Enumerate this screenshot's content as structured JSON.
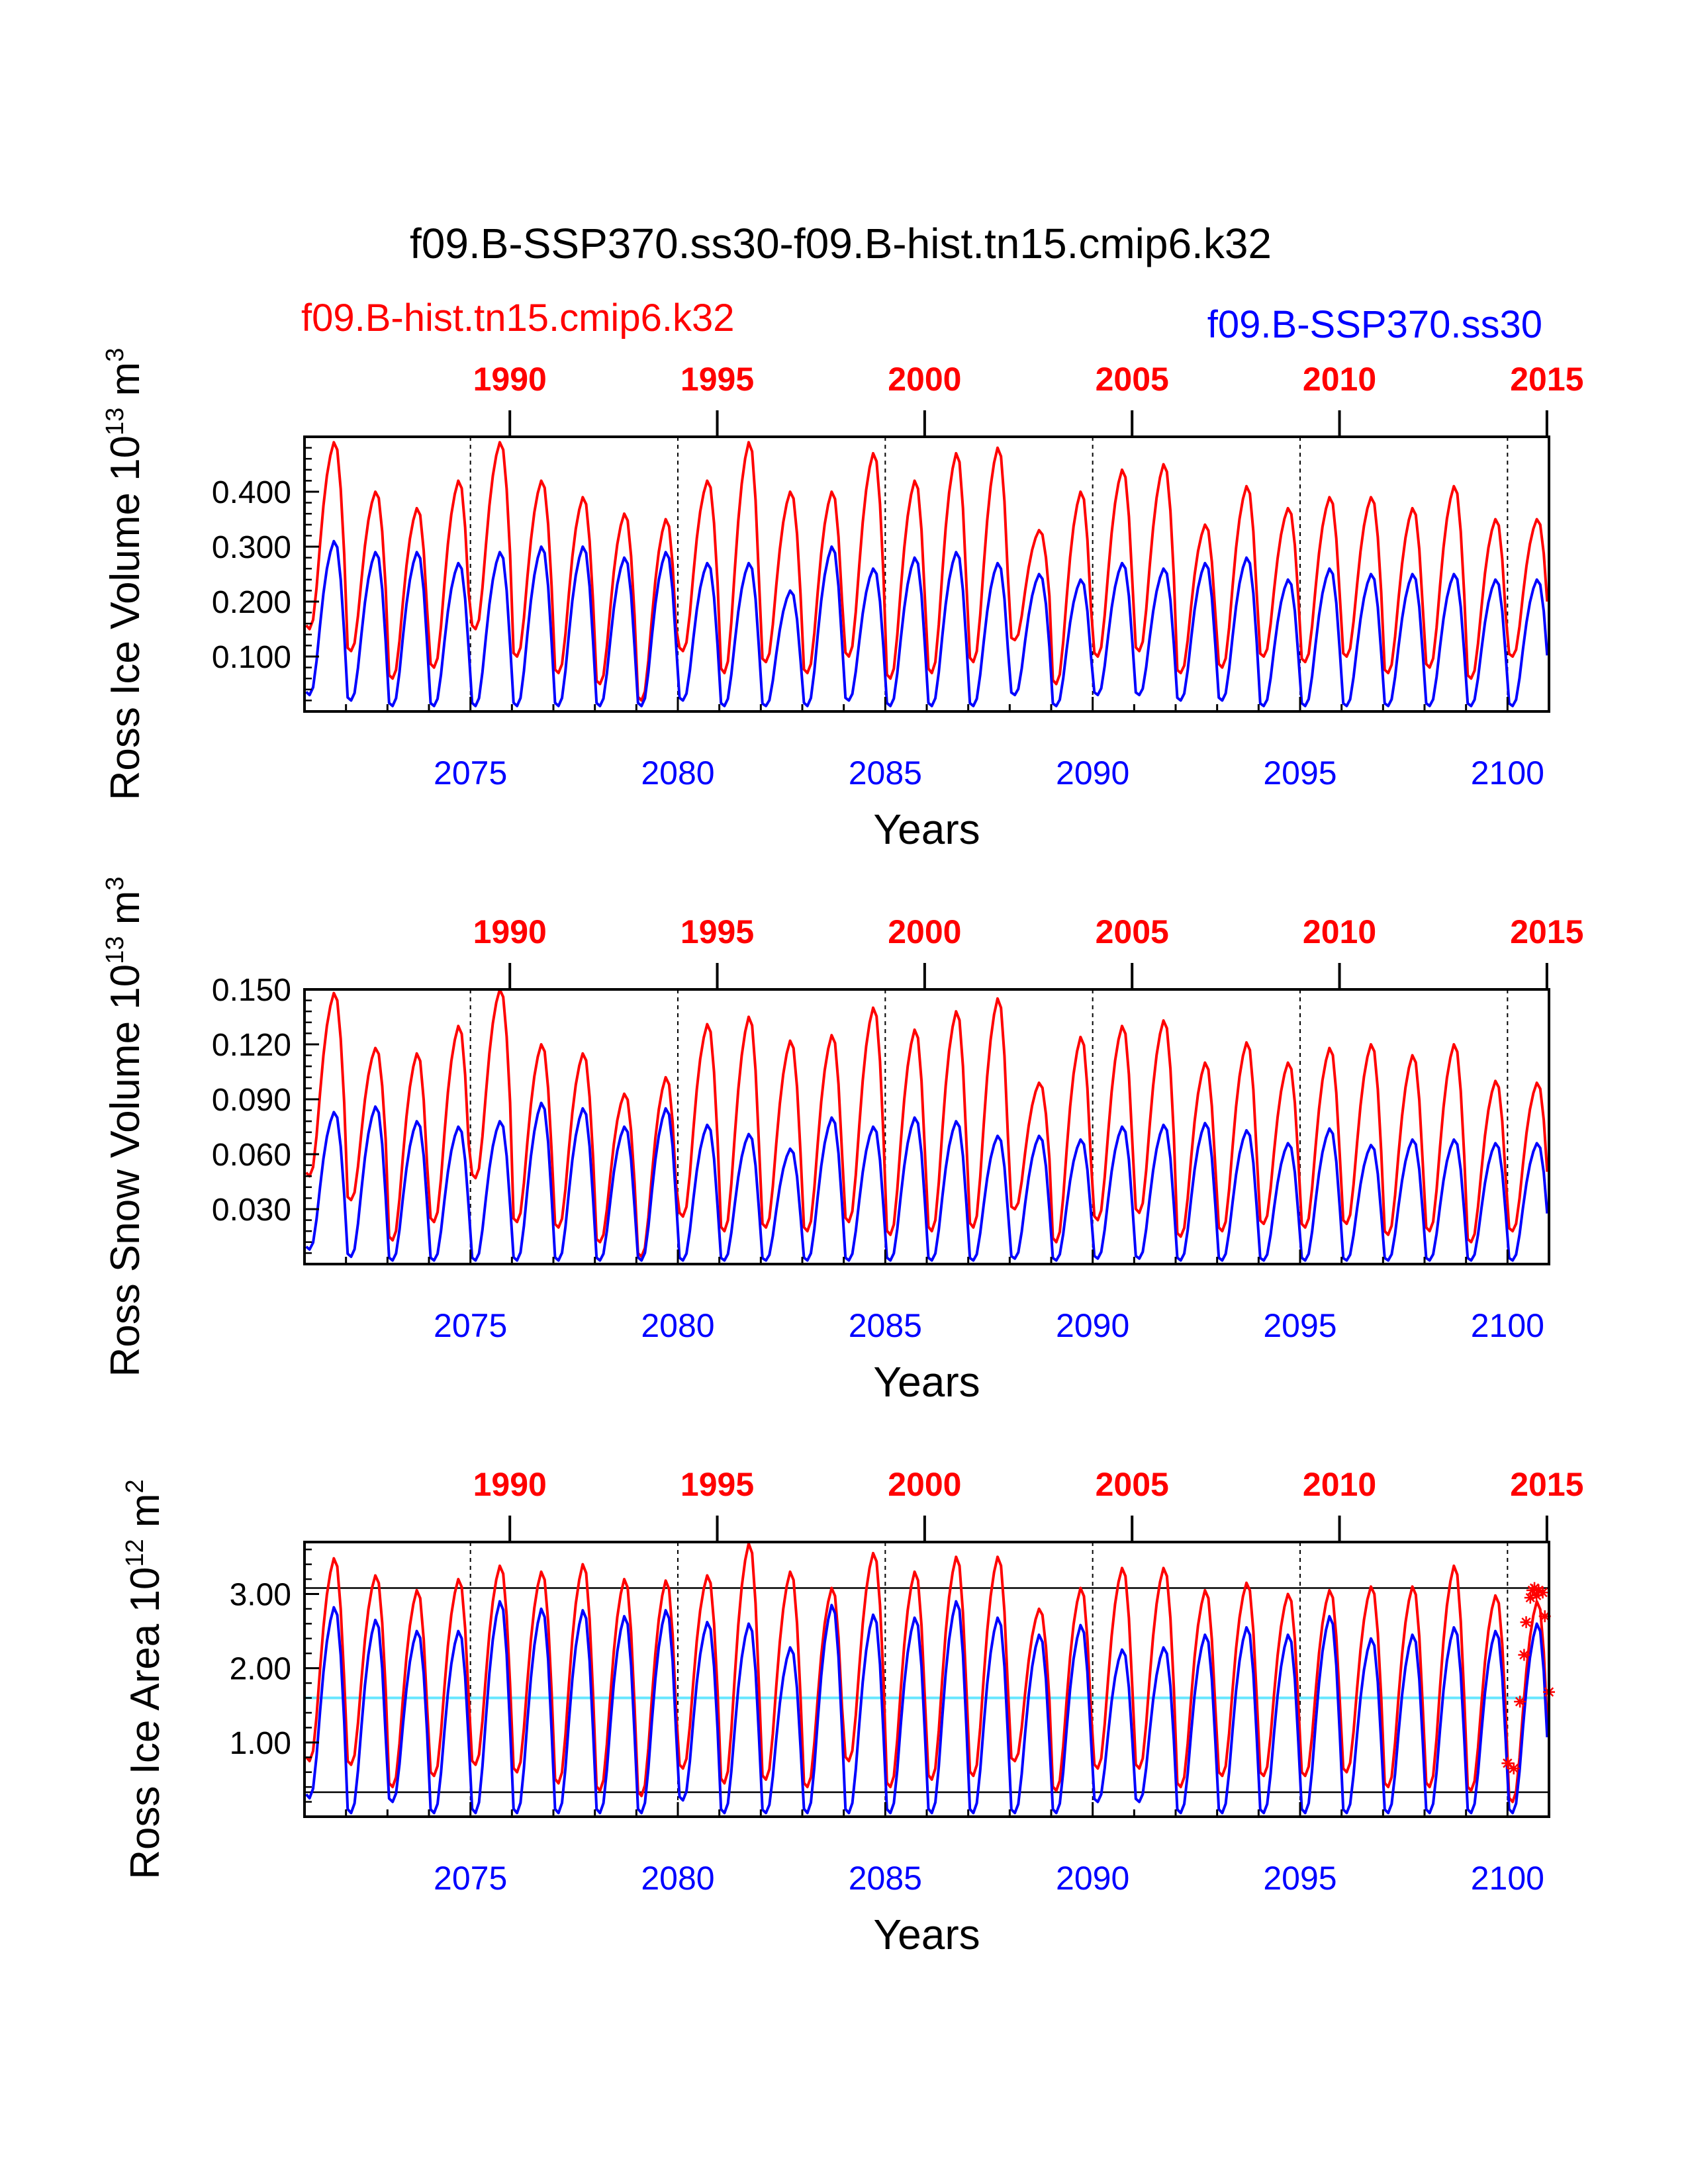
{
  "title": "f09.B-SSP370.ss30-f09.B-hist.tn15.cmip6.k32",
  "legend": {
    "left": "f09.B-hist.tn15.cmip6.k32",
    "right": "f09.B-SSP370.ss30"
  },
  "colors": {
    "red": "#ff0000",
    "blue": "#0000ff",
    "cyan": "#66e6ff",
    "black": "#000000"
  },
  "chart_data": [
    {
      "type": "line",
      "ylabel": "Ross Ice Volume 10^13 m^3",
      "xlabel": "Years",
      "xlim": [
        2071,
        2101
      ],
      "ylim": [
        0.0,
        0.5
      ],
      "yticks": [
        "0.100",
        "0.200",
        "0.300",
        "0.400"
      ],
      "bottom_axis_ticks": [
        "2075",
        "2080",
        "2085",
        "2090",
        "2095",
        "2100"
      ],
      "top_axis_ticks": [
        "1990",
        "1995",
        "2000",
        "2005",
        "2010",
        "2015"
      ],
      "series": [
        {
          "name": "f09.B-hist.tn15.cmip6.k32",
          "color": "red",
          "x_start": 2071.04,
          "annual_max": [
            0.49,
            0.4,
            0.37,
            0.42,
            0.49,
            0.42,
            0.39,
            0.36,
            0.35,
            0.42,
            0.49,
            0.4,
            0.4,
            0.47,
            0.42,
            0.47,
            0.48,
            0.33,
            0.4,
            0.44,
            0.45,
            0.34,
            0.41,
            0.37,
            0.39,
            0.39,
            0.37,
            0.41,
            0.35,
            0.35
          ],
          "annual_min": [
            0.15,
            0.11,
            0.06,
            0.08,
            0.15,
            0.1,
            0.07,
            0.05,
            0.02,
            0.11,
            0.07,
            0.09,
            0.07,
            0.1,
            0.06,
            0.07,
            0.09,
            0.13,
            0.05,
            0.1,
            0.11,
            0.07,
            0.08,
            0.1,
            0.09,
            0.1,
            0.07,
            0.08,
            0.06,
            0.1
          ]
        },
        {
          "name": "f09.B-SSP370.ss30",
          "color": "blue",
          "x_start": 2071.04,
          "annual_max": [
            0.31,
            0.29,
            0.29,
            0.27,
            0.29,
            0.3,
            0.3,
            0.28,
            0.29,
            0.27,
            0.27,
            0.22,
            0.3,
            0.26,
            0.28,
            0.29,
            0.27,
            0.25,
            0.24,
            0.27,
            0.26,
            0.27,
            0.28,
            0.24,
            0.26,
            0.25,
            0.25,
            0.25,
            0.24,
            0.24
          ],
          "annual_min": [
            0.03,
            0.02,
            0.01,
            0.01,
            0.01,
            0.01,
            0.01,
            0.01,
            0.01,
            0.02,
            0.01,
            0.01,
            0.01,
            0.02,
            0.01,
            0.01,
            0.01,
            0.03,
            0.01,
            0.03,
            0.03,
            0.02,
            0.02,
            0.01,
            0.01,
            0.01,
            0.01,
            0.01,
            0.01,
            0.01
          ]
        }
      ]
    },
    {
      "type": "line",
      "ylabel": "Ross Snow Volume 10^13 m^3",
      "xlabel": "Years",
      "xlim": [
        2071,
        2101
      ],
      "ylim": [
        0.0,
        0.15
      ],
      "yticks": [
        "0.030",
        "0.060",
        "0.090",
        "0.120",
        "0.150"
      ],
      "bottom_axis_ticks": [
        "2075",
        "2080",
        "2085",
        "2090",
        "2095",
        "2100"
      ],
      "top_axis_ticks": [
        "1990",
        "1995",
        "2000",
        "2005",
        "2010",
        "2015"
      ],
      "series": [
        {
          "name": "f09.B-hist.tn15.cmip6.k32",
          "color": "red",
          "x_start": 2071.04,
          "annual_max": [
            0.148,
            0.118,
            0.115,
            0.13,
            0.15,
            0.12,
            0.115,
            0.093,
            0.102,
            0.131,
            0.135,
            0.122,
            0.125,
            0.14,
            0.128,
            0.138,
            0.145,
            0.099,
            0.124,
            0.13,
            0.133,
            0.11,
            0.121,
            0.11,
            0.118,
            0.12,
            0.114,
            0.12,
            0.1,
            0.099
          ],
          "annual_min": [
            0.048,
            0.035,
            0.013,
            0.023,
            0.047,
            0.023,
            0.02,
            0.012,
            0.004,
            0.026,
            0.018,
            0.02,
            0.018,
            0.023,
            0.016,
            0.018,
            0.02,
            0.03,
            0.012,
            0.024,
            0.028,
            0.015,
            0.018,
            0.022,
            0.02,
            0.022,
            0.016,
            0.018,
            0.012,
            0.018
          ]
        },
        {
          "name": "f09.B-SSP370.ss30",
          "color": "blue",
          "x_start": 2071.04,
          "annual_max": [
            0.083,
            0.086,
            0.078,
            0.075,
            0.078,
            0.088,
            0.085,
            0.075,
            0.085,
            0.076,
            0.071,
            0.063,
            0.08,
            0.075,
            0.08,
            0.078,
            0.07,
            0.07,
            0.068,
            0.075,
            0.076,
            0.077,
            0.073,
            0.066,
            0.074,
            0.065,
            0.068,
            0.068,
            0.066,
            0.066
          ],
          "annual_min": [
            0.008,
            0.004,
            0.002,
            0.002,
            0.002,
            0.002,
            0.002,
            0.002,
            0.002,
            0.002,
            0.002,
            0.002,
            0.002,
            0.002,
            0.002,
            0.002,
            0.002,
            0.003,
            0.002,
            0.003,
            0.003,
            0.002,
            0.002,
            0.002,
            0.002,
            0.002,
            0.002,
            0.002,
            0.002,
            0.002
          ]
        }
      ]
    },
    {
      "type": "line",
      "ylabel": "Ross Ice Area 10^12 m^2",
      "xlabel": "Years",
      "xlim": [
        2071,
        2101
      ],
      "ylim": [
        0.0,
        3.7
      ],
      "yticks": [
        "1.00",
        "2.00",
        "3.00"
      ],
      "bottom_axis_ticks": [
        "2075",
        "2080",
        "2085",
        "2090",
        "2095",
        "2100"
      ],
      "top_axis_ticks": [
        "1990",
        "1995",
        "2000",
        "2005",
        "2010",
        "2015"
      ],
      "reference_lines": [
        {
          "y": 3.08,
          "color": "black"
        },
        {
          "y": 1.6,
          "color": "cyan"
        },
        {
          "y": 0.33,
          "color": "black"
        }
      ],
      "series": [
        {
          "name": "f09.B-hist.tn15.cmip6.k32",
          "color": "red",
          "x_start": 2071.04,
          "annual_max": [
            3.48,
            3.25,
            3.05,
            3.2,
            3.38,
            3.3,
            3.4,
            3.2,
            3.18,
            3.25,
            3.68,
            3.3,
            3.08,
            3.55,
            3.3,
            3.5,
            3.5,
            2.8,
            3.08,
            3.35,
            3.35,
            3.05,
            3.15,
            3.0,
            3.05,
            3.1,
            3.1,
            3.38,
            2.98,
            2.9
          ],
          "annual_min": [
            0.75,
            0.7,
            0.4,
            0.55,
            0.7,
            0.6,
            0.45,
            0.35,
            0.28,
            0.65,
            0.45,
            0.5,
            0.4,
            0.75,
            0.4,
            0.5,
            0.55,
            0.75,
            0.35,
            0.65,
            0.65,
            0.4,
            0.55,
            0.55,
            0.55,
            0.6,
            0.4,
            0.4,
            0.35,
            0.2
          ]
        },
        {
          "name": "f09.B-SSP370.ss30",
          "color": "blue",
          "x_start": 2071.04,
          "annual_max": [
            2.82,
            2.65,
            2.5,
            2.5,
            2.9,
            2.8,
            2.78,
            2.7,
            2.78,
            2.62,
            2.6,
            2.28,
            2.85,
            2.72,
            2.68,
            2.9,
            2.68,
            2.45,
            2.58,
            2.25,
            2.28,
            2.45,
            2.55,
            2.45,
            2.7,
            2.4,
            2.45,
            2.55,
            2.5,
            2.6
          ],
          "annual_min": [
            0.25,
            0.05,
            0.2,
            0.05,
            0.05,
            0.05,
            0.05,
            0.05,
            0.05,
            0.22,
            0.05,
            0.05,
            0.05,
            0.05,
            0.05,
            0.05,
            0.05,
            0.05,
            0.05,
            0.2,
            0.2,
            0.05,
            0.05,
            0.05,
            0.05,
            0.05,
            0.05,
            0.05,
            0.05,
            0.05
          ]
        }
      ],
      "markers": {
        "color": "red",
        "symbol": "star",
        "points": [
          [
            2100.0,
            0.72
          ],
          [
            2100.15,
            0.65
          ],
          [
            2100.3,
            1.55
          ],
          [
            2100.4,
            2.18
          ],
          [
            2100.45,
            2.62
          ],
          [
            2100.55,
            2.95
          ],
          [
            2100.6,
            3.05
          ],
          [
            2100.65,
            3.08
          ],
          [
            2100.7,
            2.98
          ],
          [
            2100.75,
            3.05
          ],
          [
            2100.85,
            3.02
          ],
          [
            2100.9,
            2.7
          ],
          [
            2101.0,
            1.68
          ]
        ]
      }
    }
  ]
}
